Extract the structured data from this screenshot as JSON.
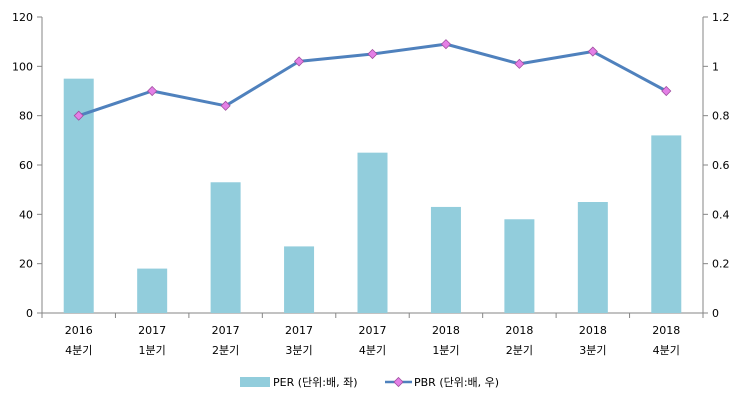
{
  "chart_data": {
    "type": "bar+line",
    "categories": [
      [
        "2016",
        "4분기"
      ],
      [
        "2017",
        "1분기"
      ],
      [
        "2017",
        "2분기"
      ],
      [
        "2017",
        "3분기"
      ],
      [
        "2017",
        "4분기"
      ],
      [
        "2018",
        "1분기"
      ],
      [
        "2018",
        "2분기"
      ],
      [
        "2018",
        "3분기"
      ],
      [
        "2018",
        "4분기"
      ]
    ],
    "series": [
      {
        "name": "PER (단위:배, 좌)",
        "type": "bar",
        "axis": "left",
        "color": "#92CDDC",
        "values": [
          95,
          18,
          53,
          27,
          65,
          43,
          38,
          45,
          72
        ]
      },
      {
        "name": "PBR (단위:배, 우)",
        "type": "line",
        "axis": "right",
        "color": "#4F81BD",
        "marker_color": "#E47FE6",
        "values": [
          0.8,
          0.9,
          0.84,
          1.02,
          1.05,
          1.09,
          1.01,
          1.06,
          0.9
        ]
      }
    ],
    "y_left": {
      "min": 0,
      "max": 120,
      "ticks": [
        0,
        20,
        40,
        60,
        80,
        100,
        120
      ]
    },
    "y_right": {
      "min": 0,
      "max": 1.2,
      "ticks": [
        "0",
        "0.2",
        "0.4",
        "0.6",
        "0.8",
        "1",
        "1.2"
      ]
    },
    "legend": "bottom",
    "grid": false
  }
}
